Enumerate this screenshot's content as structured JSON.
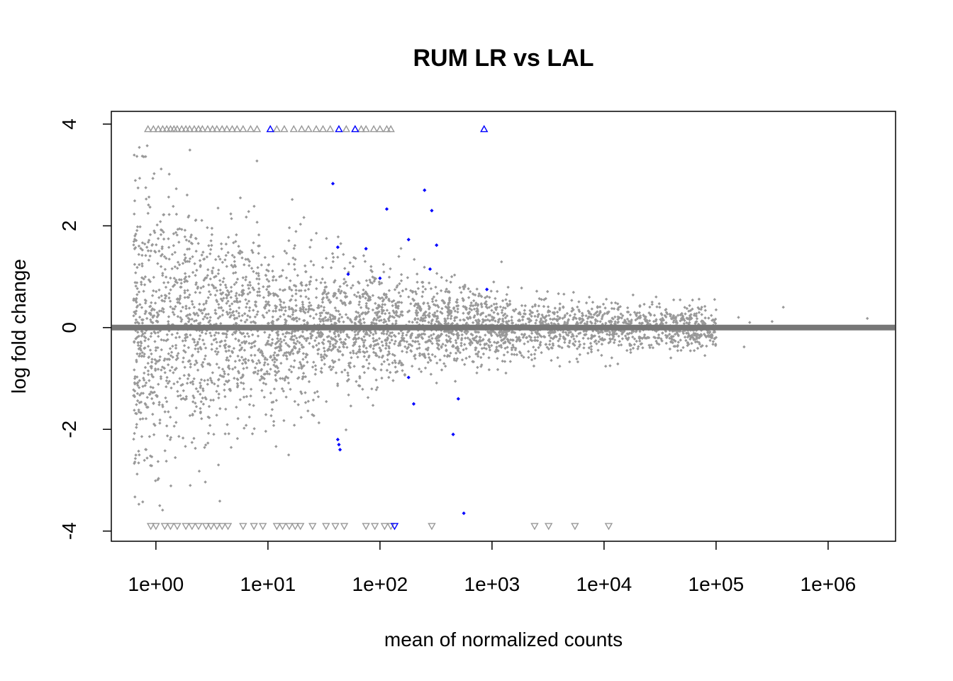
{
  "chart_data": {
    "type": "scatter",
    "title": "RUM LR vs LAL",
    "xlabel": "mean of normalized counts",
    "ylabel": "log fold change",
    "x_scale": "log10",
    "xlim": [
      0.4,
      4000000
    ],
    "ylim": [
      -4.2,
      4.25
    ],
    "x_ticks": [
      {
        "value": 1,
        "label": "1e+00"
      },
      {
        "value": 10,
        "label": "1e+01"
      },
      {
        "value": 100,
        "label": "1e+02"
      },
      {
        "value": 1000,
        "label": "1e+03"
      },
      {
        "value": 10000,
        "label": "1e+04"
      },
      {
        "value": 100000,
        "label": "1e+05"
      },
      {
        "value": 1000000,
        "label": "1e+06"
      }
    ],
    "y_ticks": [
      {
        "value": -4,
        "label": "-4"
      },
      {
        "value": -2,
        "label": "-2"
      },
      {
        "value": 0,
        "label": "0"
      },
      {
        "value": 2,
        "label": "2"
      },
      {
        "value": 4,
        "label": "4"
      }
    ],
    "reference_line": {
      "y": 0,
      "color": "#777777"
    },
    "grid": false,
    "colors": {
      "non_significant": "#999999",
      "significant": "#0000ff",
      "axis": "#000000"
    },
    "series": [
      {
        "marker": "dot",
        "color": "#0000ff",
        "points": [
          {
            "x": 38,
            "y": 2.83
          },
          {
            "x": 250,
            "y": 2.7
          },
          {
            "x": 115,
            "y": 2.33
          },
          {
            "x": 290,
            "y": 2.3
          },
          {
            "x": 180,
            "y": 1.73
          },
          {
            "x": 320,
            "y": 1.62
          },
          {
            "x": 42,
            "y": 1.58
          },
          {
            "x": 75,
            "y": 1.55
          },
          {
            "x": 52,
            "y": 1.05
          },
          {
            "x": 100,
            "y": 0.97
          },
          {
            "x": 280,
            "y": 1.15
          },
          {
            "x": 900,
            "y": 0.75
          },
          {
            "x": 180,
            "y": -0.98
          },
          {
            "x": 200,
            "y": -1.5
          },
          {
            "x": 500,
            "y": -1.4
          },
          {
            "x": 450,
            "y": -2.1
          },
          {
            "x": 42,
            "y": -2.2
          },
          {
            "x": 43,
            "y": -2.3
          },
          {
            "x": 44,
            "y": -2.4
          },
          {
            "x": 560,
            "y": -3.65
          }
        ]
      },
      {
        "marker": "triangle-up",
        "color": "#0000ff",
        "points": [
          {
            "x": 10.5,
            "y": 3.9
          },
          {
            "x": 43,
            "y": 3.9
          },
          {
            "x": 60,
            "y": 3.9
          },
          {
            "x": 850,
            "y": 3.9
          }
        ]
      },
      {
        "marker": "triangle-down",
        "color": "#0000ff",
        "points": [
          {
            "x": 135,
            "y": -3.9
          }
        ]
      },
      {
        "marker": "triangle-up",
        "color": "#999999",
        "points": [
          {
            "x": 0.85,
            "y": 3.9
          },
          {
            "x": 0.95,
            "y": 3.9
          },
          {
            "x": 1.05,
            "y": 3.9
          },
          {
            "x": 1.15,
            "y": 3.9
          },
          {
            "x": 1.25,
            "y": 3.9
          },
          {
            "x": 1.35,
            "y": 3.9
          },
          {
            "x": 1.45,
            "y": 3.9
          },
          {
            "x": 1.55,
            "y": 3.9
          },
          {
            "x": 1.7,
            "y": 3.9
          },
          {
            "x": 1.85,
            "y": 3.9
          },
          {
            "x": 2.0,
            "y": 3.9
          },
          {
            "x": 2.2,
            "y": 3.9
          },
          {
            "x": 2.4,
            "y": 3.9
          },
          {
            "x": 2.6,
            "y": 3.9
          },
          {
            "x": 2.9,
            "y": 3.9
          },
          {
            "x": 3.2,
            "y": 3.9
          },
          {
            "x": 3.5,
            "y": 3.9
          },
          {
            "x": 3.9,
            "y": 3.9
          },
          {
            "x": 4.3,
            "y": 3.9
          },
          {
            "x": 4.8,
            "y": 3.9
          },
          {
            "x": 5.3,
            "y": 3.9
          },
          {
            "x": 6.0,
            "y": 3.9
          },
          {
            "x": 7.0,
            "y": 3.9
          },
          {
            "x": 8.0,
            "y": 3.9
          },
          {
            "x": 12,
            "y": 3.9
          },
          {
            "x": 14,
            "y": 3.9
          },
          {
            "x": 17,
            "y": 3.9
          },
          {
            "x": 20,
            "y": 3.9
          },
          {
            "x": 23,
            "y": 3.9
          },
          {
            "x": 27,
            "y": 3.9
          },
          {
            "x": 31,
            "y": 3.9
          },
          {
            "x": 36,
            "y": 3.9
          },
          {
            "x": 50,
            "y": 3.9
          },
          {
            "x": 68,
            "y": 3.9
          },
          {
            "x": 75,
            "y": 3.9
          },
          {
            "x": 88,
            "y": 3.9
          },
          {
            "x": 100,
            "y": 3.9
          },
          {
            "x": 115,
            "y": 3.9
          },
          {
            "x": 125,
            "y": 3.9
          }
        ]
      },
      {
        "marker": "triangle-down",
        "color": "#999999",
        "points": [
          {
            "x": 0.9,
            "y": -3.9
          },
          {
            "x": 1.0,
            "y": -3.9
          },
          {
            "x": 1.2,
            "y": -3.9
          },
          {
            "x": 1.35,
            "y": -3.9
          },
          {
            "x": 1.55,
            "y": -3.9
          },
          {
            "x": 1.85,
            "y": -3.9
          },
          {
            "x": 2.1,
            "y": -3.9
          },
          {
            "x": 2.4,
            "y": -3.9
          },
          {
            "x": 2.8,
            "y": -3.9
          },
          {
            "x": 3.1,
            "y": -3.9
          },
          {
            "x": 3.5,
            "y": -3.9
          },
          {
            "x": 3.9,
            "y": -3.9
          },
          {
            "x": 4.4,
            "y": -3.9
          },
          {
            "x": 6.0,
            "y": -3.9
          },
          {
            "x": 7.5,
            "y": -3.9
          },
          {
            "x": 9.0,
            "y": -3.9
          },
          {
            "x": 12,
            "y": -3.9
          },
          {
            "x": 13.5,
            "y": -3.9
          },
          {
            "x": 15.5,
            "y": -3.9
          },
          {
            "x": 17.5,
            "y": -3.9
          },
          {
            "x": 19.5,
            "y": -3.9
          },
          {
            "x": 25,
            "y": -3.9
          },
          {
            "x": 33,
            "y": -3.9
          },
          {
            "x": 40,
            "y": -3.9
          },
          {
            "x": 48,
            "y": -3.9
          },
          {
            "x": 75,
            "y": -3.9
          },
          {
            "x": 90,
            "y": -3.9
          },
          {
            "x": 110,
            "y": -3.9
          },
          {
            "x": 125,
            "y": -3.9
          },
          {
            "x": 290,
            "y": -3.9
          },
          {
            "x": 2400,
            "y": -3.9
          },
          {
            "x": 3200,
            "y": -3.9
          },
          {
            "x": 5500,
            "y": -3.9
          },
          {
            "x": 11000,
            "y": -3.9
          }
        ]
      }
    ]
  }
}
